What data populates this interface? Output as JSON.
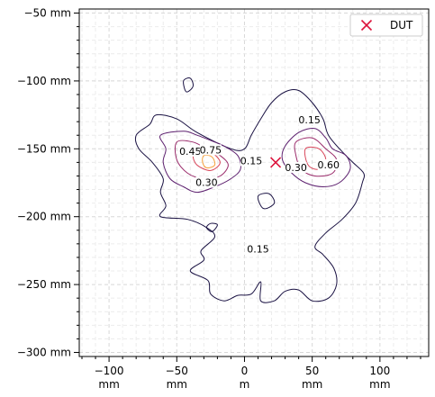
{
  "chart_data": {
    "type": "contour",
    "title": "",
    "xlabel": "",
    "ylabel": "",
    "xunit": "mm",
    "xunit_zero": "m",
    "yunit": "mm",
    "xlim": [
      -122,
      136
    ],
    "ylim": [
      -303,
      -47
    ],
    "xticks": [
      -100,
      -50,
      0,
      50,
      100
    ],
    "yticks": [
      -50,
      -100,
      -150,
      -200,
      -250,
      -300
    ],
    "grid": true,
    "legend": {
      "position": "top-right",
      "entries": [
        {
          "label": "DUT",
          "marker": "x",
          "color": "#dc143c"
        }
      ]
    },
    "marker": {
      "label": "DUT",
      "x": 23,
      "y": -160
    },
    "contour_levels": [
      0.15,
      0.3,
      0.45,
      0.6,
      0.75
    ],
    "contour_level_labels": [
      {
        "text": "0.15",
        "x": 48,
        "y": -130
      },
      {
        "text": "0.15",
        "x": 5,
        "y": -160
      },
      {
        "text": "0.15",
        "x": 10,
        "y": -225
      },
      {
        "text": "0.30",
        "x": -28,
        "y": -176
      },
      {
        "text": "0.30",
        "x": 38,
        "y": -165
      },
      {
        "text": "0.45",
        "x": -40,
        "y": -153
      },
      {
        "text": "0.60",
        "x": 62,
        "y": -163
      },
      {
        "text": "0.75",
        "x": -25,
        "y": -152
      }
    ],
    "level_colors": {
      "0.15": "#1a1243",
      "0.30": "#5c1f6e",
      "0.45": "#9a2a6a",
      "0.60": "#d9465a",
      "0.75": "#f7a13c"
    },
    "contours": [
      {
        "level": 0.15,
        "points": [
          [
            -10,
            -150
          ],
          [
            -35,
            -138
          ],
          [
            -50,
            -128
          ],
          [
            -65,
            -125
          ],
          [
            -70,
            -132
          ],
          [
            -80,
            -140
          ],
          [
            -78,
            -150
          ],
          [
            -68,
            -160
          ],
          [
            -60,
            -172
          ],
          [
            -62,
            -182
          ],
          [
            -58,
            -192
          ],
          [
            -62,
            -200
          ],
          [
            -42,
            -202
          ],
          [
            -28,
            -208
          ],
          [
            -22,
            -215
          ],
          [
            -32,
            -225
          ],
          [
            -30,
            -232
          ],
          [
            -40,
            -240
          ],
          [
            -27,
            -247
          ],
          [
            -25,
            -257
          ],
          [
            -15,
            -262
          ],
          [
            -5,
            -258
          ],
          [
            5,
            -257
          ],
          [
            12,
            -248
          ],
          [
            12,
            -262
          ],
          [
            22,
            -262
          ],
          [
            30,
            -255
          ],
          [
            40,
            -254
          ],
          [
            50,
            -262
          ],
          [
            62,
            -260
          ],
          [
            68,
            -250
          ],
          [
            66,
            -238
          ],
          [
            58,
            -228
          ],
          [
            52,
            -222
          ],
          [
            60,
            -212
          ],
          [
            72,
            -202
          ],
          [
            82,
            -190
          ],
          [
            87,
            -175
          ],
          [
            88,
            -168
          ],
          [
            80,
            -160
          ],
          [
            72,
            -152
          ],
          [
            62,
            -140
          ],
          [
            58,
            -128
          ],
          [
            50,
            -116
          ],
          [
            40,
            -107
          ],
          [
            30,
            -108
          ],
          [
            20,
            -116
          ],
          [
            12,
            -128
          ],
          [
            5,
            -140
          ],
          [
            0,
            -150
          ],
          [
            -10,
            -150
          ]
        ]
      },
      {
        "level": 0.15,
        "points": [
          [
            -45,
            -100
          ],
          [
            -40,
            -98
          ],
          [
            -38,
            -104
          ],
          [
            -43,
            -108
          ],
          [
            -45,
            -100
          ]
        ]
      },
      {
        "level": 0.15,
        "points": [
          [
            -25,
            -205
          ],
          [
            -20,
            -206
          ],
          [
            -24,
            -211
          ],
          [
            -28,
            -208
          ],
          [
            -25,
            -205
          ]
        ]
      },
      {
        "level": 0.15,
        "points": [
          [
            10,
            -185
          ],
          [
            18,
            -183
          ],
          [
            22,
            -190
          ],
          [
            14,
            -194
          ],
          [
            10,
            -185
          ]
        ]
      },
      {
        "level": 0.3,
        "points": [
          [
            -62,
            -140
          ],
          [
            -45,
            -137
          ],
          [
            -35,
            -140
          ],
          [
            -22,
            -145
          ],
          [
            -15,
            -148
          ],
          [
            -5,
            -155
          ],
          [
            -3,
            -165
          ],
          [
            -10,
            -172
          ],
          [
            -22,
            -178
          ],
          [
            -35,
            -182
          ],
          [
            -45,
            -178
          ],
          [
            -55,
            -172
          ],
          [
            -60,
            -160
          ],
          [
            -58,
            -150
          ],
          [
            -62,
            -140
          ]
        ]
      },
      {
        "level": 0.3,
        "points": [
          [
            30,
            -148
          ],
          [
            40,
            -138
          ],
          [
            52,
            -135
          ],
          [
            60,
            -142
          ],
          [
            65,
            -150
          ],
          [
            75,
            -155
          ],
          [
            78,
            -165
          ],
          [
            70,
            -175
          ],
          [
            58,
            -178
          ],
          [
            45,
            -175
          ],
          [
            35,
            -168
          ],
          [
            28,
            -158
          ],
          [
            30,
            -148
          ]
        ]
      },
      {
        "level": 0.45,
        "points": [
          [
            -50,
            -145
          ],
          [
            -38,
            -145
          ],
          [
            -28,
            -150
          ],
          [
            -18,
            -155
          ],
          [
            -12,
            -162
          ],
          [
            -18,
            -170
          ],
          [
            -30,
            -172
          ],
          [
            -42,
            -168
          ],
          [
            -50,
            -158
          ],
          [
            -50,
            -145
          ]
        ]
      },
      {
        "level": 0.45,
        "points": [
          [
            38,
            -145
          ],
          [
            50,
            -142
          ],
          [
            60,
            -150
          ],
          [
            68,
            -158
          ],
          [
            65,
            -168
          ],
          [
            52,
            -170
          ],
          [
            42,
            -165
          ],
          [
            38,
            -155
          ],
          [
            38,
            -145
          ]
        ]
      },
      {
        "level": 0.6,
        "points": [
          [
            -35,
            -150
          ],
          [
            -25,
            -152
          ],
          [
            -18,
            -160
          ],
          [
            -25,
            -166
          ],
          [
            -35,
            -162
          ],
          [
            -38,
            -155
          ],
          [
            -35,
            -150
          ]
        ]
      },
      {
        "level": 0.6,
        "points": [
          [
            45,
            -150
          ],
          [
            55,
            -150
          ],
          [
            60,
            -158
          ],
          [
            55,
            -165
          ],
          [
            47,
            -162
          ],
          [
            45,
            -150
          ]
        ]
      },
      {
        "level": 0.75,
        "points": [
          [
            -30,
            -155
          ],
          [
            -24,
            -156
          ],
          [
            -22,
            -162
          ],
          [
            -28,
            -164
          ],
          [
            -31,
            -160
          ],
          [
            -30,
            -155
          ]
        ]
      }
    ]
  }
}
